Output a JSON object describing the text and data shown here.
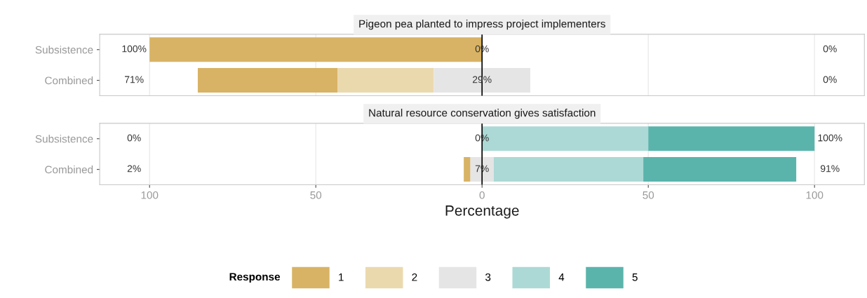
{
  "chart_data": [
    {
      "type": "bar",
      "orientation": "horizontal",
      "title": "Pigeon pea planted to impress project implementers",
      "categories": [
        "Subsistence",
        "Combined"
      ],
      "series": [
        {
          "name": "1",
          "color": "#d8b365",
          "base": [
            -100,
            -85.5
          ],
          "values": [
            100,
            42
          ]
        },
        {
          "name": "2",
          "color": "#ebd9ae",
          "base": [
            null,
            -43.5
          ],
          "values": [
            null,
            29
          ]
        },
        {
          "name": "3",
          "color": "#e5e5e5",
          "base": [
            null,
            -14.5
          ],
          "values": [
            null,
            29
          ]
        }
      ],
      "xlim": [
        -115,
        115
      ],
      "tick_labels": "y",
      "grid": "x",
      "legend": "bottom",
      "ref_lines": [
        {
          "axis": "x",
          "value": 0,
          "color": "#000000"
        }
      ],
      "annotations": [
        "100%",
        "0%",
        "0%",
        "71%",
        "0%",
        "29%"
      ]
    },
    {
      "type": "bar",
      "orientation": "horizontal",
      "title": "Natural resource conservation gives satisfaction",
      "categories": [
        "Subsistence",
        "Combined"
      ],
      "series": [
        {
          "name": "1",
          "color": "#d8b365",
          "base": [
            null,
            -5.5
          ],
          "values": [
            null,
            2
          ]
        },
        {
          "name": "2",
          "color": "#ebd9ae",
          "base": [
            null,
            null
          ],
          "values": [
            null,
            null
          ]
        },
        {
          "name": "3",
          "color": "#e5e5e5",
          "base": [
            null,
            -3.5
          ],
          "values": [
            null,
            7
          ]
        },
        {
          "name": "4",
          "color": "#acd9d5",
          "base": [
            0,
            3.5
          ],
          "values": [
            50,
            45
          ]
        },
        {
          "name": "5",
          "color": "#5ab4ac",
          "base": [
            50,
            48.5
          ],
          "values": [
            50,
            46
          ]
        }
      ],
      "xlim": [
        -115,
        115
      ],
      "xticks": [
        {
          "value": -100,
          "label": "100"
        },
        {
          "value": -50,
          "label": "50"
        },
        0,
        50,
        100
      ],
      "xlabel": "Percentage",
      "grid": "x",
      "legend": "bottom",
      "legend_title": "Response",
      "ref_lines": [
        {
          "axis": "x",
          "value": 0,
          "color": "#000000"
        }
      ],
      "annotations": [
        "0%",
        "100%",
        "0%",
        "2%",
        "91%",
        "7%"
      ]
    }
  ]
}
